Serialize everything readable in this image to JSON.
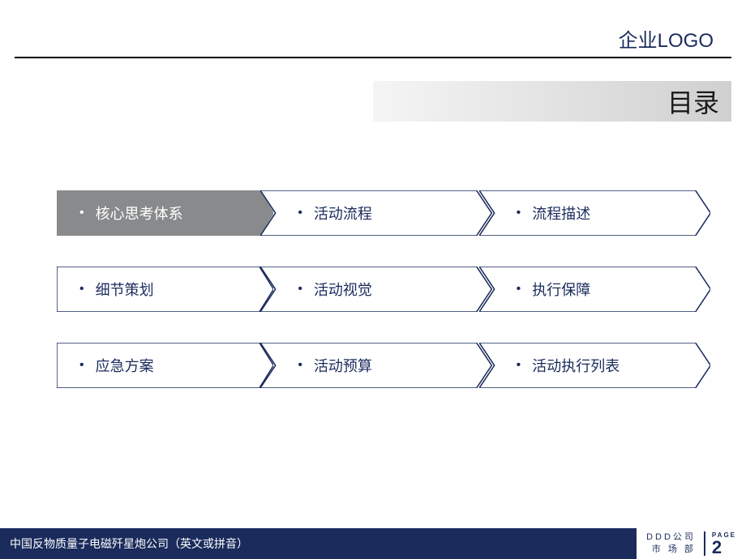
{
  "header": {
    "logo_text": "企业LOGO"
  },
  "title": "目录",
  "colors": {
    "primary": "#1a2b5c",
    "active_fill": "#888a8c",
    "border": "#1a2b5c",
    "white": "#ffffff"
  },
  "toc": {
    "rows": [
      [
        {
          "label": "核心思考体系",
          "active": true
        },
        {
          "label": "活动流程",
          "active": false
        },
        {
          "label": "流程描述",
          "active": false
        }
      ],
      [
        {
          "label": "细节策划",
          "active": false
        },
        {
          "label": "活动视觉",
          "active": false
        },
        {
          "label": "执行保障",
          "active": false
        }
      ],
      [
        {
          "label": "应急方案",
          "active": false
        },
        {
          "label": "活动预算",
          "active": false
        },
        {
          "label": "活动执行列表",
          "active": false
        }
      ]
    ]
  },
  "footer": {
    "left_text": "中国反物质量子电磁歼星炮公司（英文或拼音）",
    "company_line1": "DDD公司",
    "company_line2": "市 场 部",
    "page_label": "PAGE",
    "page_number": "2"
  }
}
